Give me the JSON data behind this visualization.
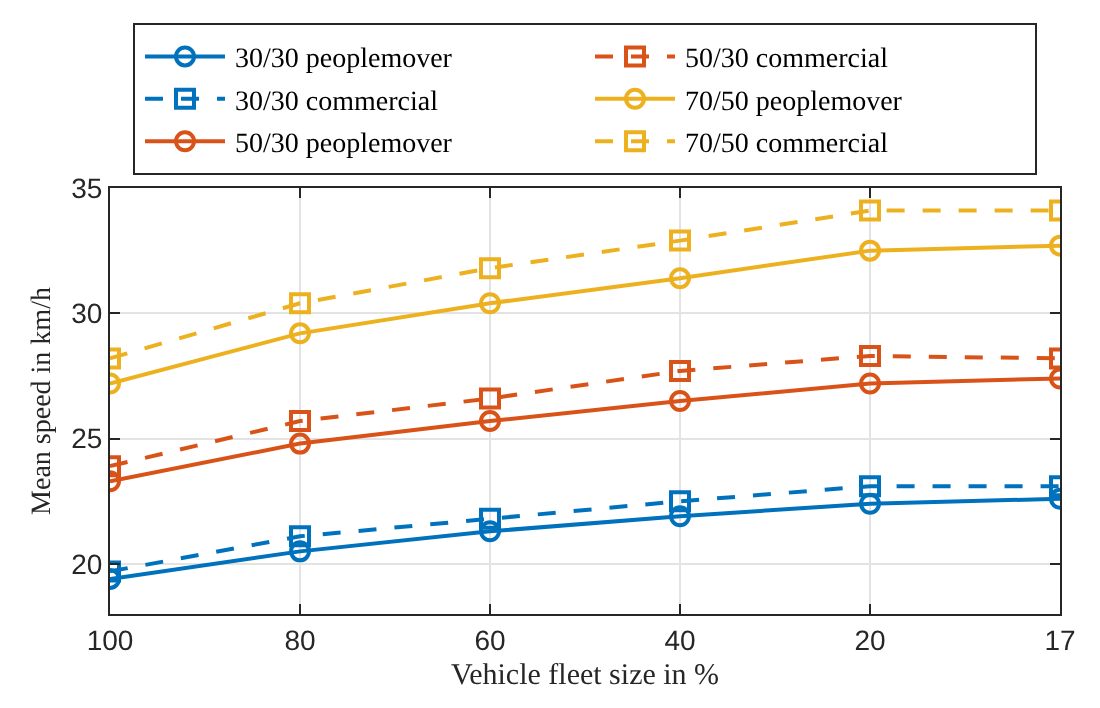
{
  "chart_data": {
    "type": "line",
    "xlabel": "Vehicle fleet size in %",
    "ylabel": "Mean speed in km/h",
    "categories": [
      "100",
      "80",
      "60",
      "40",
      "20",
      "17"
    ],
    "ylim": [
      18,
      35
    ],
    "yticks": [
      20,
      25,
      30,
      35
    ],
    "grid": true,
    "legend": "top",
    "series": [
      {
        "name": "30/30 peoplemover",
        "color": "#0072bd",
        "marker": "circle",
        "line_style": "solid",
        "values": [
          19.4,
          20.5,
          21.3,
          21.9,
          22.4,
          22.6
        ]
      },
      {
        "name": "30/30 commercial",
        "color": "#0072bd",
        "marker": "square",
        "line_style": "dashed",
        "values": [
          19.7,
          21.1,
          21.8,
          22.5,
          23.1,
          23.1
        ]
      },
      {
        "name": "50/30 peoplemover",
        "color": "#d95319",
        "marker": "circle",
        "line_style": "solid",
        "values": [
          23.3,
          24.8,
          25.7,
          26.5,
          27.2,
          27.4
        ]
      },
      {
        "name": "50/30 commercial",
        "color": "#d95319",
        "marker": "square",
        "line_style": "dashed",
        "values": [
          23.9,
          25.7,
          26.6,
          27.7,
          28.3,
          28.2
        ]
      },
      {
        "name": "70/50 peoplemover",
        "color": "#edb120",
        "marker": "circle",
        "line_style": "solid",
        "values": [
          27.2,
          29.2,
          30.4,
          31.4,
          32.5,
          32.7
        ]
      },
      {
        "name": "70/50 commercial",
        "color": "#edb120",
        "marker": "square",
        "line_style": "dashed",
        "values": [
          28.2,
          30.4,
          31.8,
          32.9,
          34.1,
          34.1
        ]
      }
    ]
  }
}
